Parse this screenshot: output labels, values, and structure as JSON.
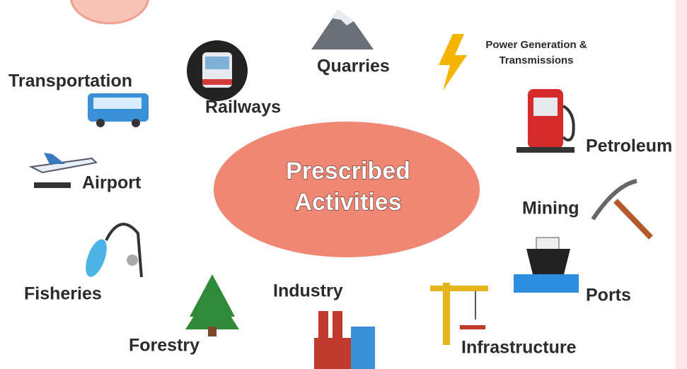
{
  "center": {
    "lines": [
      "Prescribed",
      "Activities"
    ]
  },
  "nodes": [
    {
      "label": "Quarries"
    },
    {
      "lines": [
        "Power Generation &",
        "Transmissions"
      ]
    },
    {
      "label": "Railways"
    },
    {
      "label": "Transportation"
    },
    {
      "label": "Petroleum"
    },
    {
      "label": "Airport"
    },
    {
      "label": "Mining"
    },
    {
      "label": "Fisheries"
    },
    {
      "label": "Ports"
    },
    {
      "label": "Industry"
    },
    {
      "label": "Forestry"
    },
    {
      "label": "Infrastructure"
    }
  ]
}
